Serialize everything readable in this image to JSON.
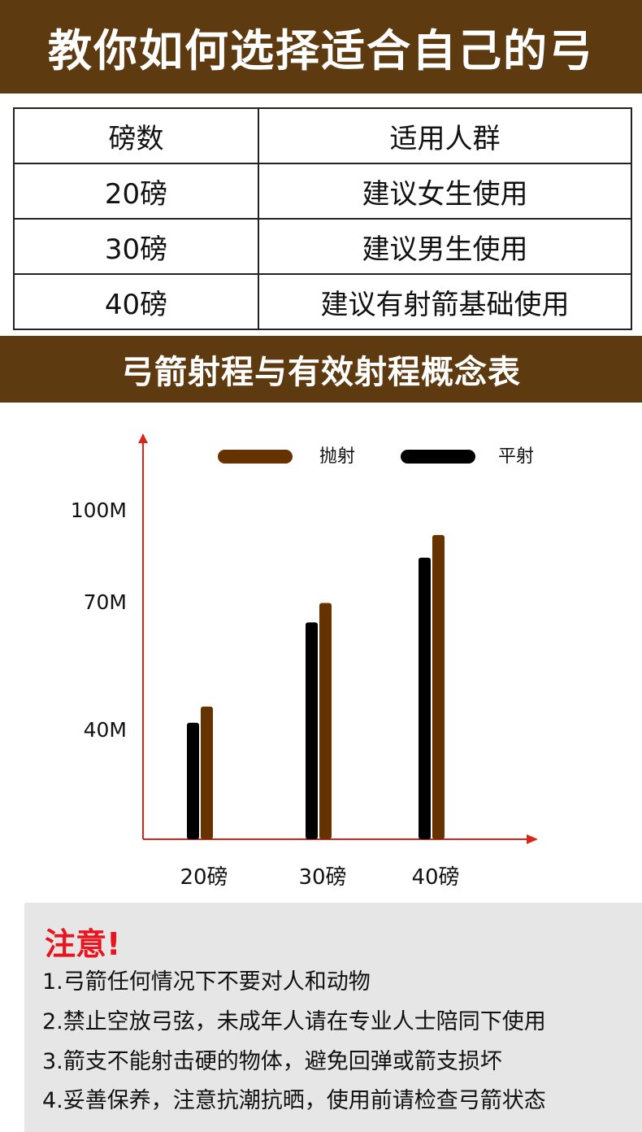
{
  "header": {
    "title": "教你如何选择适合自己的弓"
  },
  "table": {
    "headers": [
      "磅数",
      "适用人群"
    ],
    "rows": [
      [
        "20磅",
        "建议女生使用"
      ],
      [
        "30磅",
        "建议男生使用"
      ],
      [
        "40磅",
        "建议有射箭基础使用"
      ]
    ]
  },
  "section": {
    "title": "弓箭射程与有效射程概念表"
  },
  "chart_data": {
    "type": "bar",
    "categories": [
      "20磅",
      "30磅",
      "40磅"
    ],
    "series": [
      {
        "name": "平射",
        "color": "#000000",
        "values": [
          36,
          67,
          87
        ]
      },
      {
        "name": "抛射",
        "color": "#663300",
        "values": [
          41,
          73,
          94
        ]
      }
    ],
    "y_tick_labels": [
      {
        "value": 100,
        "label": "100M"
      },
      {
        "value": 70,
        "label": "70M"
      },
      {
        "value": 40,
        "label": "40M"
      }
    ],
    "legend_order": [
      "抛射",
      "平射"
    ],
    "legend_position": "top",
    "axis_color": "#d9261c",
    "ylim": [
      0,
      100
    ],
    "grid": false
  },
  "notice": {
    "title": "注意!",
    "items": [
      "1.弓箭任何情况下不要对人和动物",
      "2.禁止空放弓弦，未成年人请在专业人士陪同下使用",
      "3.箭支不能射击硬的物体，避免回弹或箭支损坏",
      "4.妥善保养，注意抗潮抗晒，使用前请检查弓箭状态"
    ]
  }
}
